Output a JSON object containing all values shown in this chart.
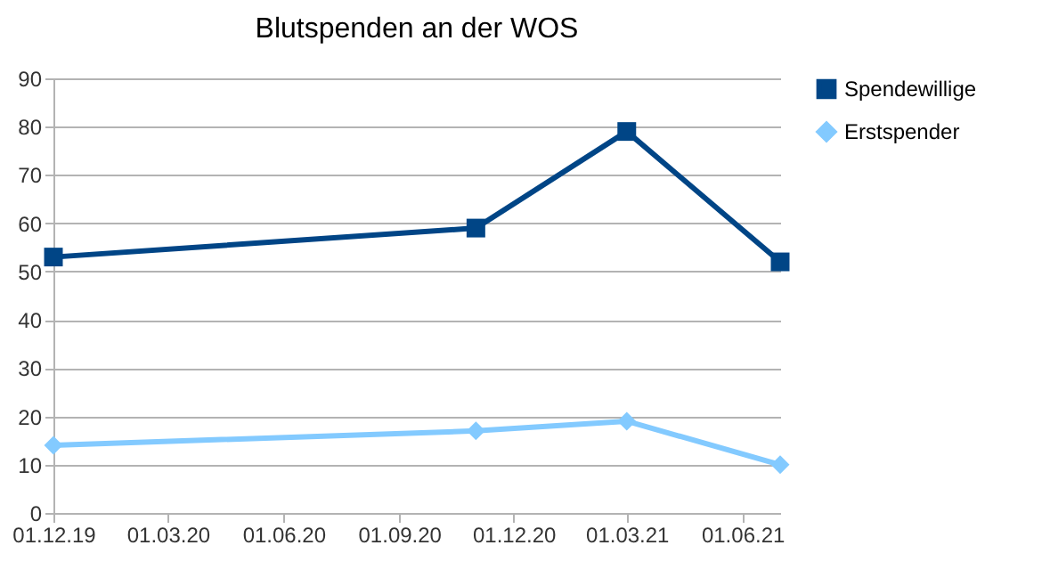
{
  "chart_data": {
    "type": "line",
    "title": "Blutspenden an der WOS",
    "x": [
      "2019-12-01",
      "2020-11-01",
      "2021-03-01",
      "2021-07-01"
    ],
    "series": [
      {
        "name": "Spendewillige",
        "color": "#004586",
        "marker": "square",
        "values": [
          53,
          59,
          79,
          52
        ]
      },
      {
        "name": "Erstspender",
        "color": "#83caff",
        "marker": "diamond",
        "values": [
          14,
          17,
          19,
          10
        ]
      }
    ],
    "xlim": [
      "2019-12-01",
      "2021-07-01"
    ],
    "xticks": [
      {
        "value": "2019-12-01",
        "label": "01.12.19"
      },
      {
        "value": "2020-03-01",
        "label": "01.03.20"
      },
      {
        "value": "2020-06-01",
        "label": "01.06.20"
      },
      {
        "value": "2020-09-01",
        "label": "01.09.20"
      },
      {
        "value": "2020-12-01",
        "label": "01.12.20"
      },
      {
        "value": "2021-03-01",
        "label": "01.03.21"
      },
      {
        "value": "2021-06-01",
        "label": "01.06.21"
      }
    ],
    "ylim": [
      0,
      90
    ],
    "yticks": [
      0,
      10,
      20,
      30,
      40,
      50,
      60,
      70,
      80,
      90
    ],
    "grid": "y",
    "legend": "right",
    "line_style": "solid"
  }
}
